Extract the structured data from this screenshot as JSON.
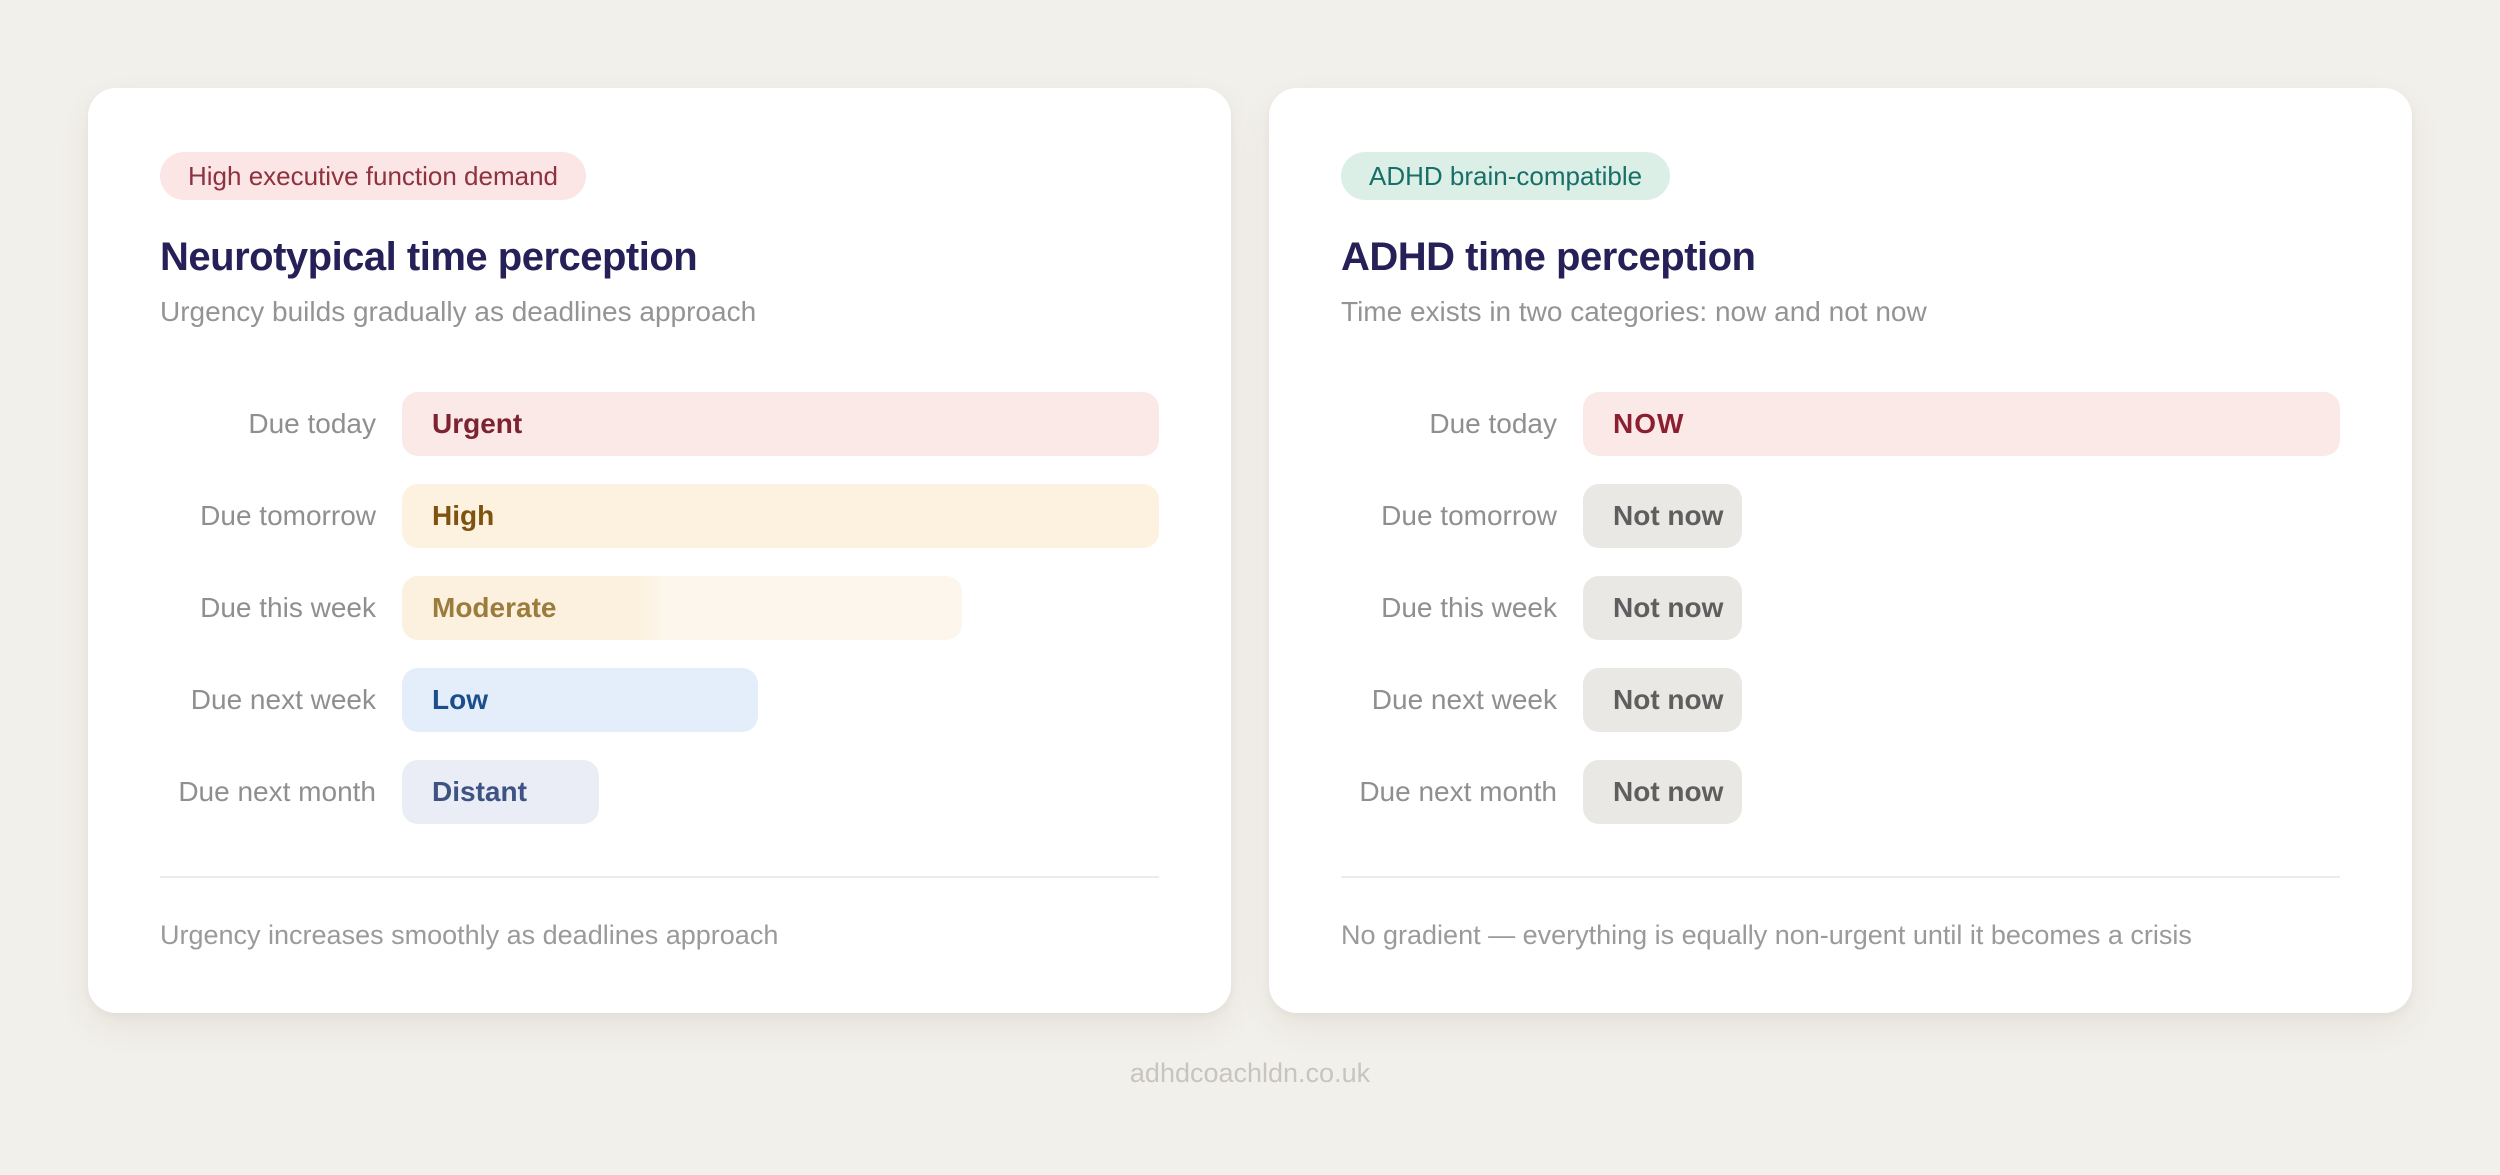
{
  "page": {
    "background": "#f2f0ea",
    "watermark": "adhdcoachldn.co.uk"
  },
  "cards": [
    {
      "badge": {
        "label": "High executive function demand",
        "bg": "#fbe5e5",
        "color": "#8e3140"
      },
      "title": "Neurotypical time perception",
      "subtitle": "Urgency builds gradually as deadlines approach",
      "rows": [
        {
          "label": "Due today",
          "value": "Urgent",
          "width_pct": 100,
          "bg": "#fbe9e8",
          "color": "#7d2230"
        },
        {
          "label": "Due tomorrow",
          "value": "High",
          "width_pct": 100,
          "bg": "#fdf2df",
          "color": "#80520f"
        },
        {
          "label": "Due this week",
          "value": "Moderate",
          "width_pct": 74,
          "bg": "#fcf1de",
          "bg2": "#fdf6ec",
          "split_pct": 42,
          "color": "#9c7c3c"
        },
        {
          "label": "Due next week",
          "value": "Low",
          "width_pct": 47,
          "bg": "#e4eefa",
          "color": "#1b4e8a"
        },
        {
          "label": "Due next month",
          "value": "Distant",
          "width_pct": 26,
          "bg": "#eaedf6",
          "color": "#3e5384"
        }
      ],
      "footnote": "Urgency increases smoothly as deadlines approach"
    },
    {
      "badge": {
        "label": "ADHD brain-compatible",
        "bg": "#dcefe6",
        "color": "#176f68"
      },
      "title": "ADHD time perception",
      "subtitle": "Time exists in two categories: now and not now",
      "rows": [
        {
          "label": "Due today",
          "value": "NOW",
          "width_pct": 100,
          "bg": "#fbe9e8",
          "color": "#8c1f2f",
          "letter_spacing": "1px"
        },
        {
          "label": "Due tomorrow",
          "value": "Not now",
          "width_pct": 21,
          "bg": "#e9e8e5",
          "color": "#5e5e5e"
        },
        {
          "label": "Due this week",
          "value": "Not now",
          "width_pct": 21,
          "bg": "#e9e8e5",
          "color": "#5e5e5e"
        },
        {
          "label": "Due next week",
          "value": "Not now",
          "width_pct": 21,
          "bg": "#e9e8e5",
          "color": "#5e5e5e"
        },
        {
          "label": "Due next month",
          "value": "Not now",
          "width_pct": 21,
          "bg": "#e9e8e5",
          "color": "#5e5e5e"
        }
      ],
      "footnote": "No gradient — everything is equally non-urgent until it becomes a crisis"
    }
  ],
  "chart_data": [
    {
      "type": "bar",
      "orientation": "horizontal",
      "title": "Neurotypical time perception",
      "subtitle": "Urgency builds gradually as deadlines approach",
      "categories": [
        "Due today",
        "Due tomorrow",
        "Due this week",
        "Due next week",
        "Due next month"
      ],
      "values": [
        100,
        100,
        74,
        47,
        26
      ],
      "bar_labels": [
        "Urgent",
        "High",
        "Moderate",
        "Low",
        "Distant"
      ],
      "xlim": [
        0,
        100
      ],
      "values_note": "relative bar widths, % of track",
      "grid": false,
      "legend": "none"
    },
    {
      "type": "bar",
      "orientation": "horizontal",
      "title": "ADHD time perception",
      "subtitle": "Time exists in two categories: now and not now",
      "categories": [
        "Due today",
        "Due tomorrow",
        "Due this week",
        "Due next week",
        "Due next month"
      ],
      "values": [
        100,
        21,
        21,
        21,
        21
      ],
      "bar_labels": [
        "NOW",
        "Not now",
        "Not now",
        "Not now",
        "Not now"
      ],
      "xlim": [
        0,
        100
      ],
      "values_note": "relative bar widths, % of track",
      "grid": false,
      "legend": "none"
    }
  ]
}
